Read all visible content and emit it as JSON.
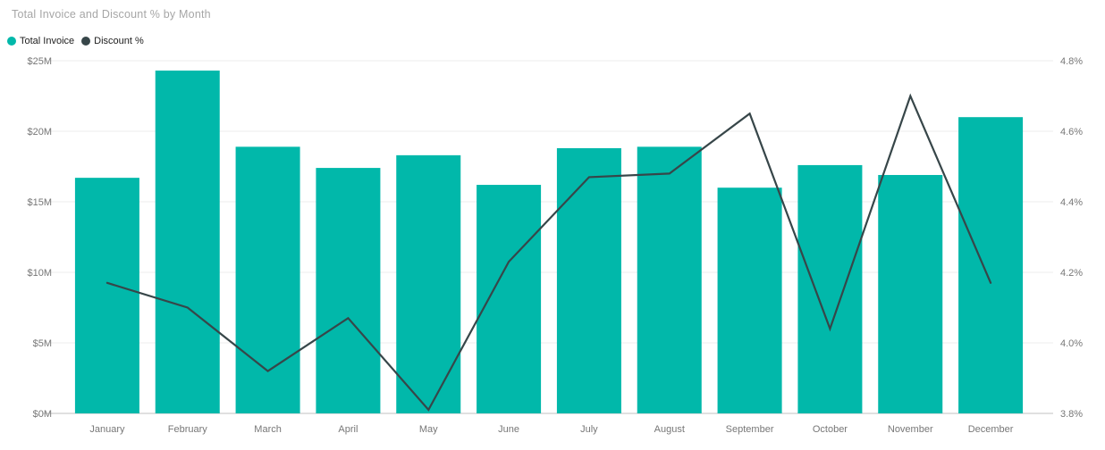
{
  "title": "Total Invoice and Discount % by Month",
  "legend": [
    {
      "label": "Total Invoice",
      "color": "#01B8AA"
    },
    {
      "label": "Discount %",
      "color": "#374649"
    }
  ],
  "colors": {
    "bar": "#01B8AA",
    "line": "#374649",
    "gridline": "#ececec",
    "axis_line": "#e0e0e0",
    "axis_label": "#777777",
    "title": "#a6a6a6",
    "legend_text": "#212121",
    "background": "#ffffff"
  },
  "chart_data": {
    "type": "combo-bar-line",
    "title": "Total Invoice and Discount % by Month",
    "categories": [
      "January",
      "February",
      "March",
      "April",
      "May",
      "June",
      "July",
      "August",
      "September",
      "October",
      "November",
      "December"
    ],
    "series": [
      {
        "name": "Total Invoice",
        "type": "bar",
        "axis": "left",
        "color": "#01B8AA",
        "unit": "$M",
        "values": [
          16.7,
          24.3,
          18.9,
          17.4,
          18.3,
          16.2,
          18.8,
          18.9,
          16.0,
          17.6,
          16.9,
          21.0
        ]
      },
      {
        "name": "Discount %",
        "type": "line",
        "axis": "right",
        "color": "#374649",
        "unit": "%",
        "values": [
          4.17,
          4.1,
          3.92,
          4.07,
          3.81,
          4.23,
          4.47,
          4.48,
          4.65,
          4.04,
          4.7,
          4.17
        ]
      }
    ],
    "left_axis": {
      "min": 0,
      "max": 25,
      "tick_labels": [
        "$0M",
        "$5M",
        "$10M",
        "$15M",
        "$20M",
        "$25M"
      ]
    },
    "right_axis": {
      "min": 3.8,
      "max": 4.8,
      "tick_labels": [
        "3.8%",
        "4.0%",
        "4.2%",
        "4.4%",
        "4.6%",
        "4.8%"
      ]
    },
    "grid": true,
    "legend_position": "top-left"
  }
}
